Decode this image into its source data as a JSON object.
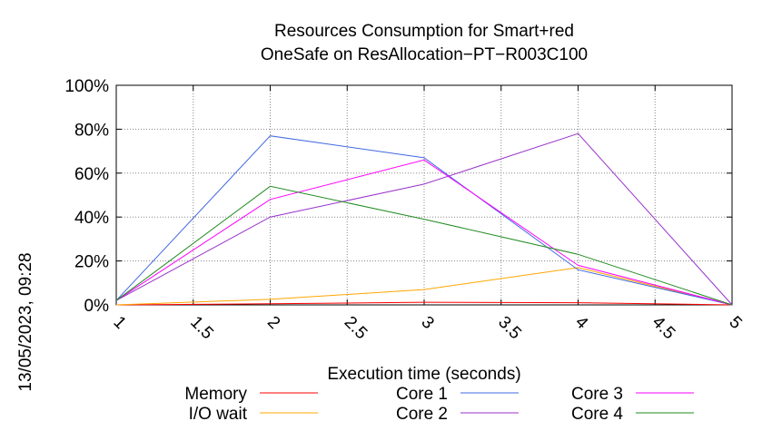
{
  "side_label": "13/05/2023, 09:28",
  "chart_data": {
    "type": "line",
    "title_lines": [
      "Resources Consumption for Smart+red",
      "OneSafe on ResAllocation−PT−R003C100"
    ],
    "xlabel": "Execution time (seconds)",
    "ylabel": "",
    "xlim": [
      1,
      5
    ],
    "ylim": [
      0,
      100
    ],
    "x_ticks": [
      1,
      1.5,
      2,
      2.5,
      3,
      3.5,
      4,
      4.5,
      5
    ],
    "x_tick_labels": [
      "1",
      "1.5",
      "2",
      "2.5",
      "3",
      "3.5",
      "4",
      "4.5",
      "5"
    ],
    "y_ticks": [
      0,
      20,
      40,
      60,
      80,
      100
    ],
    "y_tick_labels": [
      "0%",
      "20%",
      "40%",
      "60%",
      "80%",
      "100%"
    ],
    "grid": true,
    "legend_position": "bottom",
    "x": [
      1,
      2,
      3,
      4,
      5
    ],
    "series": [
      {
        "name": "Memory",
        "color": "#ff0000",
        "values": [
          0,
          0.5,
          1.2,
          1.0,
          0
        ]
      },
      {
        "name": "I/O wait",
        "color": "#ffa500",
        "values": [
          0,
          2.5,
          7,
          17,
          0
        ]
      },
      {
        "name": "Core 1",
        "color": "#4169e1",
        "values": [
          2,
          77,
          67,
          16,
          0
        ]
      },
      {
        "name": "Core 2",
        "color": "#9932cc",
        "values": [
          2,
          40,
          55,
          78,
          0
        ]
      },
      {
        "name": "Core 3",
        "color": "#ff00ff",
        "values": [
          2,
          48,
          66,
          18,
          0
        ]
      },
      {
        "name": "Core 4",
        "color": "#228b22",
        "values": [
          2,
          54,
          39,
          23,
          0
        ]
      }
    ]
  }
}
